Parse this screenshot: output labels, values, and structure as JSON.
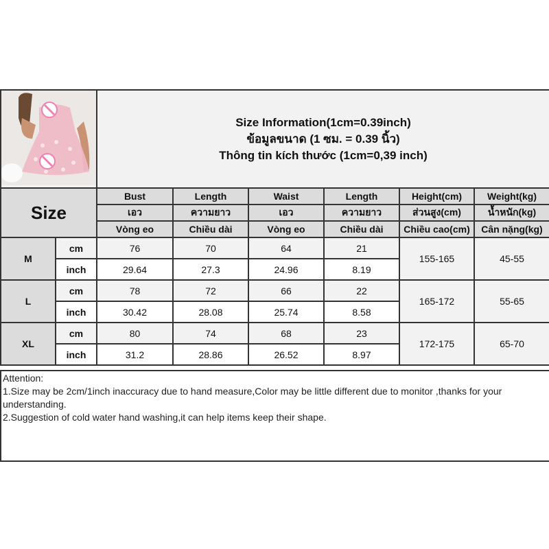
{
  "title": {
    "line1": "Size Information(1cm=0.39inch)",
    "line2": "ข้อมูลขนาด (1 ซม. = 0.39 นิ้ว)",
    "line3": "Thông tin kích thước (1cm=0,39 inch)"
  },
  "size_label": "Size",
  "columns": [
    {
      "en": "Bust",
      "th": "เอว",
      "vi": "Vòng eo"
    },
    {
      "en": "Length",
      "th": "ความยาว",
      "vi": "Chiều dài"
    },
    {
      "en": "Waist",
      "th": "เอว",
      "vi": "Vòng eo"
    },
    {
      "en": "Length",
      "th": "ความยาว",
      "vi": "Chiều dài"
    },
    {
      "en": "Height(cm)",
      "th": "ส่วนสูง(cm)",
      "vi": "Chiều cao(cm)"
    },
    {
      "en": "Weight(kg)",
      "th": "น้ำหนัก(kg)",
      "vi": "Cân nặng(kg)"
    }
  ],
  "units": {
    "cm": "cm",
    "inch": "inch"
  },
  "rows": [
    {
      "size": "M",
      "cm": [
        "76",
        "70",
        "64",
        "21"
      ],
      "inch": [
        "29.64",
        "27.3",
        "24.96",
        "8.19"
      ],
      "height": "155-165",
      "weight": "45-55"
    },
    {
      "size": "L",
      "cm": [
        "78",
        "72",
        "66",
        "22"
      ],
      "inch": [
        "30.42",
        "28.08",
        "25.74",
        "8.58"
      ],
      "height": "165-172",
      "weight": "55-65"
    },
    {
      "size": "XL",
      "cm": [
        "80",
        "74",
        "68",
        "23"
      ],
      "inch": [
        "31.2",
        "28.86",
        "26.52",
        "8.97"
      ],
      "height": "172-175",
      "weight": "65-70"
    }
  ],
  "attention": {
    "heading": "Attention:",
    "note1": "1.Size may be 2cm/1inch inaccuracy due to hand measure,Color may be little different due to monitor ,thanks for your understanding.",
    "note2": "2.Suggestion of cold water hand washing,it can help items keep their shape."
  },
  "colors": {
    "header_bg": "#dcdcdc",
    "light_bg": "#f2f2f2",
    "border": "#333333",
    "garment_pink": "#f0b8c4"
  }
}
